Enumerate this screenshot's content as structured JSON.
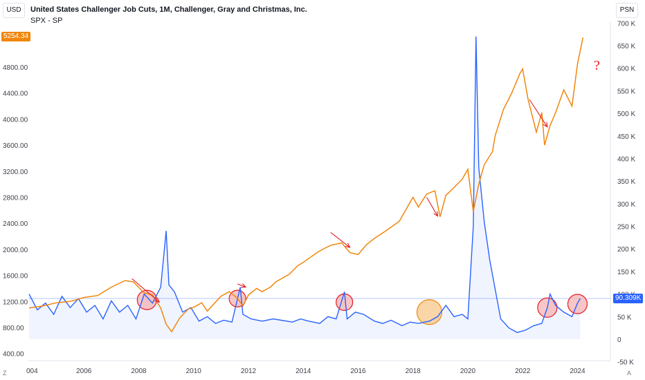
{
  "left_unit": "USD",
  "right_unit": "PSN",
  "title": "United States Challenger Job Cuts, 1M, Challenger, Gray and Christmas, Inc.",
  "subtitle": "SPX - SP",
  "spx_last_label": "5254.34",
  "jobcuts_last_label": "90.309K",
  "corner_left": "Z",
  "corner_right": "A",
  "question_mark": "?",
  "colors": {
    "spx": "#f0860c",
    "jobcuts": "#2962ff",
    "annotation": "#e31b23",
    "circle_fill": "#f5b3b3",
    "circle_fill_orange": "#f8c78a"
  },
  "chart_data": {
    "type": "line",
    "x_ticks": [
      "004",
      "2006",
      "2008",
      "2010",
      "2012",
      "2014",
      "2016",
      "2018",
      "2020",
      "2022",
      "2024"
    ],
    "left_axis": {
      "ticks": [
        "400.00",
        "800.00",
        "1200.00",
        "1600.00",
        "2000.00",
        "2400.00",
        "2800.00",
        "3200.00",
        "3600.00",
        "4000.00",
        "4400.00",
        "4800.00"
      ],
      "range": [
        400,
        5300
      ]
    },
    "right_axis": {
      "ticks": [
        "-50 K",
        "0",
        "50 K",
        "100 K",
        "150 K",
        "200 K",
        "250 K",
        "300 K",
        "350 K",
        "400 K",
        "450 K",
        "500 K",
        "550 K",
        "600 K",
        "650 K",
        "700 K"
      ],
      "range": [
        -50000,
        700000
      ]
    },
    "series": [
      {
        "name": "SPX - SP",
        "axis": "left",
        "points": [
          [
            2004.0,
            1100
          ],
          [
            2004.5,
            1130
          ],
          [
            2005.0,
            1180
          ],
          [
            2005.5,
            1200
          ],
          [
            2006.0,
            1260
          ],
          [
            2006.5,
            1290
          ],
          [
            2007.0,
            1420
          ],
          [
            2007.5,
            1520
          ],
          [
            2007.8,
            1500
          ],
          [
            2008.2,
            1330
          ],
          [
            2008.5,
            1300
          ],
          [
            2008.8,
            1100
          ],
          [
            2009.0,
            850
          ],
          [
            2009.2,
            735
          ],
          [
            2009.5,
            950
          ],
          [
            2009.8,
            1080
          ],
          [
            2010.0,
            1110
          ],
          [
            2010.3,
            1180
          ],
          [
            2010.5,
            1050
          ],
          [
            2010.8,
            1190
          ],
          [
            2011.0,
            1280
          ],
          [
            2011.3,
            1350
          ],
          [
            2011.6,
            1250
          ],
          [
            2011.8,
            1130
          ],
          [
            2012.0,
            1300
          ],
          [
            2012.3,
            1400
          ],
          [
            2012.5,
            1350
          ],
          [
            2012.8,
            1420
          ],
          [
            2013.0,
            1500
          ],
          [
            2013.5,
            1620
          ],
          [
            2013.8,
            1750
          ],
          [
            2014.0,
            1800
          ],
          [
            2014.5,
            1950
          ],
          [
            2014.8,
            2020
          ],
          [
            2015.0,
            2060
          ],
          [
            2015.4,
            2100
          ],
          [
            2015.7,
            1950
          ],
          [
            2016.0,
            1920
          ],
          [
            2016.3,
            2070
          ],
          [
            2016.6,
            2170
          ],
          [
            2017.0,
            2280
          ],
          [
            2017.5,
            2430
          ],
          [
            2018.0,
            2800
          ],
          [
            2018.2,
            2650
          ],
          [
            2018.5,
            2850
          ],
          [
            2018.8,
            2900
          ],
          [
            2018.99,
            2500
          ],
          [
            2019.2,
            2830
          ],
          [
            2019.5,
            2950
          ],
          [
            2019.8,
            3080
          ],
          [
            2020.0,
            3230
          ],
          [
            2020.2,
            2580
          ],
          [
            2020.4,
            3000
          ],
          [
            2020.6,
            3300
          ],
          [
            2020.9,
            3500
          ],
          [
            2021.0,
            3750
          ],
          [
            2021.3,
            4150
          ],
          [
            2021.6,
            4400
          ],
          [
            2021.9,
            4700
          ],
          [
            2022.0,
            4770
          ],
          [
            2022.2,
            4300
          ],
          [
            2022.5,
            3800
          ],
          [
            2022.7,
            4100
          ],
          [
            2022.8,
            3600
          ],
          [
            2023.0,
            3900
          ],
          [
            2023.2,
            4100
          ],
          [
            2023.5,
            4450
          ],
          [
            2023.8,
            4200
          ],
          [
            2024.0,
            4850
          ],
          [
            2024.2,
            5254.34
          ]
        ]
      },
      {
        "name": "United States Challenger Job Cuts",
        "axis": "right",
        "points": [
          [
            2004.0,
            100000
          ],
          [
            2004.3,
            65000
          ],
          [
            2004.6,
            80000
          ],
          [
            2004.9,
            55000
          ],
          [
            2005.2,
            95000
          ],
          [
            2005.5,
            70000
          ],
          [
            2005.8,
            90000
          ],
          [
            2006.1,
            60000
          ],
          [
            2006.4,
            75000
          ],
          [
            2006.7,
            45000
          ],
          [
            2007.0,
            85000
          ],
          [
            2007.3,
            60000
          ],
          [
            2007.6,
            75000
          ],
          [
            2007.9,
            45000
          ],
          [
            2008.2,
            100000
          ],
          [
            2008.5,
            80000
          ],
          [
            2008.8,
            115000
          ],
          [
            2009.0,
            240000
          ],
          [
            2009.1,
            120000
          ],
          [
            2009.3,
            105000
          ],
          [
            2009.6,
            60000
          ],
          [
            2009.9,
            70000
          ],
          [
            2010.2,
            40000
          ],
          [
            2010.5,
            50000
          ],
          [
            2010.8,
            35000
          ],
          [
            2011.1,
            42000
          ],
          [
            2011.4,
            38000
          ],
          [
            2011.7,
            115000
          ],
          [
            2011.8,
            55000
          ],
          [
            2012.1,
            45000
          ],
          [
            2012.5,
            40000
          ],
          [
            2012.9,
            45000
          ],
          [
            2013.2,
            42000
          ],
          [
            2013.6,
            38000
          ],
          [
            2013.9,
            45000
          ],
          [
            2014.2,
            40000
          ],
          [
            2014.6,
            35000
          ],
          [
            2014.9,
            50000
          ],
          [
            2015.2,
            45000
          ],
          [
            2015.5,
            105000
          ],
          [
            2015.6,
            45000
          ],
          [
            2015.9,
            60000
          ],
          [
            2016.2,
            55000
          ],
          [
            2016.6,
            40000
          ],
          [
            2016.9,
            35000
          ],
          [
            2017.2,
            42000
          ],
          [
            2017.6,
            30000
          ],
          [
            2017.9,
            38000
          ],
          [
            2018.2,
            35000
          ],
          [
            2018.6,
            40000
          ],
          [
            2018.9,
            50000
          ],
          [
            2019.2,
            75000
          ],
          [
            2019.5,
            50000
          ],
          [
            2019.8,
            55000
          ],
          [
            2020.0,
            45000
          ],
          [
            2020.2,
            250000
          ],
          [
            2020.3,
            670000
          ],
          [
            2020.4,
            380000
          ],
          [
            2020.6,
            260000
          ],
          [
            2020.8,
            175000
          ],
          [
            2021.0,
            110000
          ],
          [
            2021.2,
            45000
          ],
          [
            2021.5,
            25000
          ],
          [
            2021.8,
            15000
          ],
          [
            2022.1,
            20000
          ],
          [
            2022.4,
            30000
          ],
          [
            2022.7,
            35000
          ],
          [
            2022.9,
            70000
          ],
          [
            2023.0,
            100000
          ],
          [
            2023.2,
            75000
          ],
          [
            2023.5,
            60000
          ],
          [
            2023.8,
            50000
          ],
          [
            2024.0,
            80000
          ],
          [
            2024.1,
            90309
          ]
        ]
      }
    ],
    "horizontal_line_right_value": 90309,
    "grid": false,
    "annotations": {
      "arrows": [
        [
          2007.75,
          1550,
          2008.75,
          1190
        ],
        [
          2011.6,
          1470,
          2011.9,
          1420
        ],
        [
          2015.0,
          2260,
          2015.7,
          2030
        ],
        [
          2018.5,
          2800,
          2018.9,
          2510
        ],
        [
          2022.25,
          4300,
          2022.9,
          3880
        ]
      ],
      "circles": [
        {
          "x": 2008.3,
          "y_right": 87000,
          "r": 14,
          "style": "red"
        },
        {
          "x": 2011.6,
          "y_right": 90000,
          "r": 12,
          "style": "red"
        },
        {
          "x": 2015.5,
          "y_right": 82000,
          "r": 12,
          "style": "red"
        },
        {
          "x": 2018.6,
          "y_right": 60000,
          "r": 18,
          "style": "orange"
        },
        {
          "x": 2022.9,
          "y_right": 70000,
          "r": 14,
          "style": "red"
        },
        {
          "x": 2024.0,
          "y_right": 78000,
          "r": 14,
          "style": "red"
        }
      ]
    }
  }
}
